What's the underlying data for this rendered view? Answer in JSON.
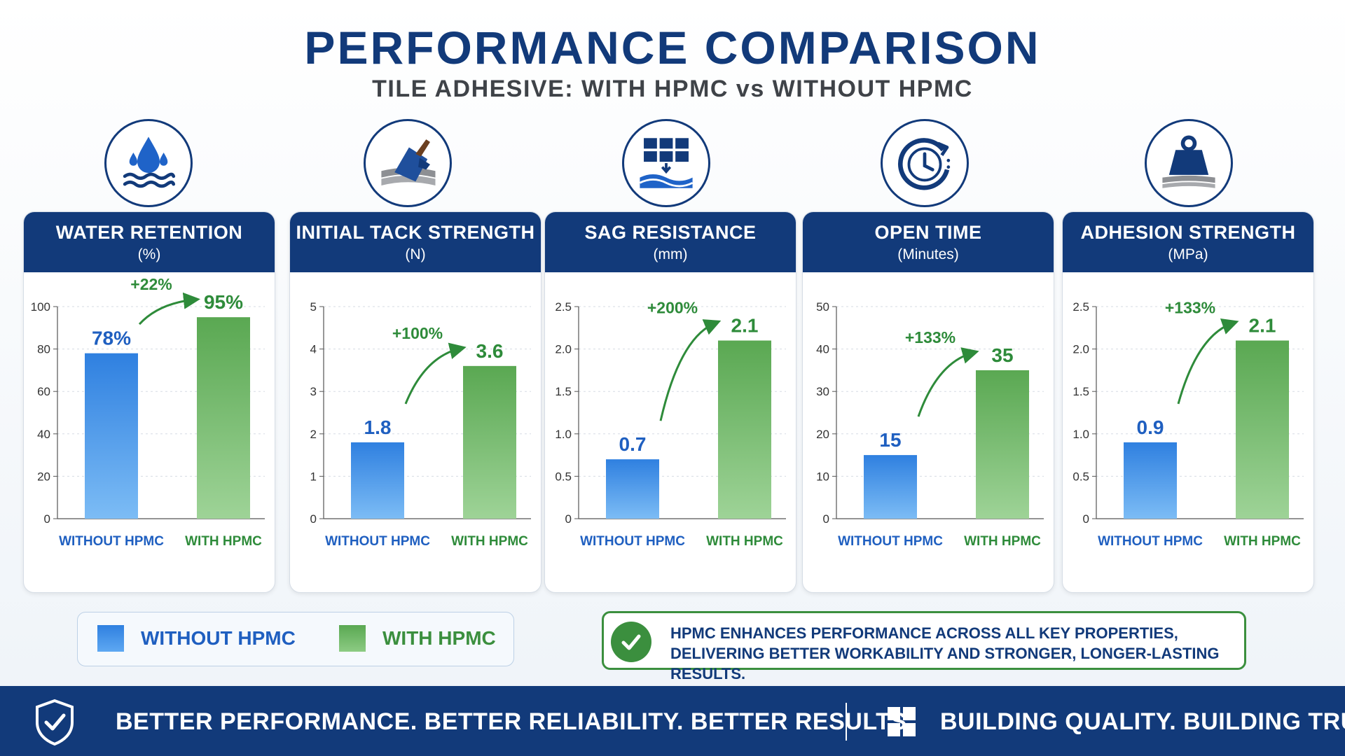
{
  "title": "PERFORMANCE COMPARISON",
  "subtitle": "TILE ADHESIVE: WITH HPMC vs WITHOUT HPMC",
  "colors": {
    "navy": "#123a7a",
    "without": "#2f80e0",
    "with": "#5aa852",
    "accent_green": "#2e8b3a"
  },
  "icons": [
    "water-drop-icon",
    "trowel-icon",
    "tile-wall-icon",
    "clock-icon",
    "weight-icon"
  ],
  "chart_data": [
    {
      "type": "bar",
      "title": "WATER RETENTION",
      "unit": "(%)",
      "categories": [
        "WITHOUT HPMC",
        "WITH HPMC"
      ],
      "values": [
        78,
        95
      ],
      "value_labels": [
        "78%",
        "95%"
      ],
      "change": "+22%",
      "ylim": [
        0,
        100
      ],
      "ticks": [
        "0",
        "20",
        "40",
        "60",
        "80",
        "100"
      ]
    },
    {
      "type": "bar",
      "title": "INITIAL TACK STRENGTH",
      "unit": "(N)",
      "categories": [
        "WITHOUT HPMC",
        "WITH HPMC"
      ],
      "values": [
        1.8,
        3.6
      ],
      "value_labels": [
        "1.8",
        "3.6"
      ],
      "change": "+100%",
      "ylim": [
        0,
        5
      ],
      "ticks": [
        "0",
        "1",
        "2",
        "3",
        "4",
        "5"
      ]
    },
    {
      "type": "bar",
      "title": "SAG RESISTANCE",
      "unit": "(mm)",
      "categories": [
        "WITHOUT HPMC",
        "WITH HPMC"
      ],
      "values": [
        0.7,
        2.1
      ],
      "value_labels": [
        "0.7",
        "2.1"
      ],
      "change": "+200%",
      "ylim": [
        0,
        2.5
      ],
      "ticks": [
        "0",
        "0.5",
        "1.0",
        "1.5",
        "2.0",
        "2.5"
      ]
    },
    {
      "type": "bar",
      "title": "OPEN TIME",
      "unit": "(Minutes)",
      "categories": [
        "WITHOUT HPMC",
        "WITH HPMC"
      ],
      "values": [
        15,
        35
      ],
      "value_labels": [
        "15",
        "35"
      ],
      "change": "+133%",
      "ylim": [
        0,
        50
      ],
      "ticks": [
        "0",
        "10",
        "20",
        "30",
        "40",
        "50"
      ]
    },
    {
      "type": "bar",
      "title": "ADHESION STRENGTH",
      "unit": "(MPa)",
      "categories": [
        "WITHOUT HPMC",
        "WITH HPMC"
      ],
      "values": [
        0.9,
        2.1
      ],
      "value_labels": [
        "0.9",
        "2.1"
      ],
      "change": "+133%",
      "ylim": [
        0,
        2.5
      ],
      "ticks": [
        "0",
        "0.5",
        "1.0",
        "1.5",
        "2.0",
        "2.5"
      ]
    }
  ],
  "legend": {
    "without": "WITHOUT HPMC",
    "with": "WITH HPMC"
  },
  "callout": {
    "line1": "HPMC ENHANCES PERFORMANCE ACROSS ALL KEY PROPERTIES,",
    "line2": "DELIVERING BETTER WORKABILITY AND STRONGER, LONGER-LASTING RESULTS."
  },
  "footer": {
    "left": "BETTER PERFORMANCE.  BETTER RELIABILITY.  BETTER RESULTS.",
    "right": "BUILDING QUALITY.  BUILDING TRUST."
  }
}
